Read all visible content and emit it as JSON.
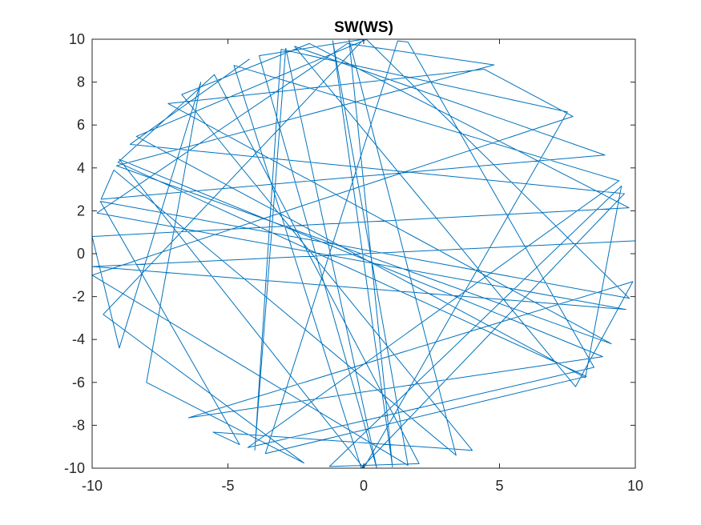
{
  "chart_data": {
    "type": "line",
    "title": "SW(WS)",
    "xlabel": "",
    "ylabel": "",
    "xlim": [
      -10,
      10
    ],
    "ylim": [
      -10,
      10
    ],
    "xticks": [
      -10,
      -5,
      0,
      5,
      10
    ],
    "yticks": [
      -10,
      -8,
      -6,
      -4,
      -2,
      0,
      2,
      4,
      6,
      8,
      10
    ],
    "grid": false,
    "legend": "none",
    "series_color": "#0072bd",
    "series": [
      {
        "x": [
          10.0,
          -9.99,
          9.66,
          -9.82,
          -0.6,
          4.8,
          -9.1,
          9.12,
          -7.2,
          4.44,
          7.7,
          -10.0,
          1.63,
          -1.14,
          1.06,
          -0.54,
          3.4,
          -9.2,
          -9.67,
          8.88,
          -2.55,
          7.8,
          9.91,
          -6.45,
          8.8,
          -9.0,
          0.0,
          7.5,
          -3.04,
          -4.01,
          -2.87,
          0.48,
          -3.85,
          0.0,
          -9.59,
          -2.2,
          -8.0,
          -6.0,
          -9.0,
          -10.0,
          9.77,
          -2.0,
          -6.7,
          4.0,
          -5.55,
          -4.57,
          -9.7,
          9.78,
          0.1,
          -8.37,
          8.16,
          9.49,
          -1.26,
          2.04,
          -5.5,
          -9.05,
          8.2,
          -3.62,
          1.25,
          1.63,
          8.48,
          -4.27,
          9.4,
          -4.78,
          -0.09,
          9.6,
          -8.6,
          -4.2
        ],
        "y": [
          0.6,
          -0.6,
          -2.6,
          1.9,
          9.8,
          8.8,
          4.1,
          -4.2,
          7.0,
          8.6,
          6.4,
          -1.0,
          -9.87,
          9.93,
          -9.94,
          9.98,
          -9.4,
          3.9,
          2.54,
          4.6,
          9.67,
          -6.2,
          -1.3,
          -7.65,
          -4.8,
          4.4,
          -10.0,
          6.61,
          9.53,
          -9.16,
          9.58,
          -9.99,
          9.23,
          10.0,
          -2.83,
          -9.76,
          -6.0,
          8.0,
          -4.4,
          0.8,
          2.14,
          9.8,
          7.42,
          -9.17,
          -8.32,
          -8.9,
          2.44,
          -2.08,
          9.99,
          5.47,
          -5.78,
          3.16,
          -9.92,
          -9.79,
          8.35,
          4.26,
          -5.72,
          -9.32,
          9.92,
          9.87,
          -5.3,
          -9.04,
          3.4,
          8.78,
          -10.0,
          2.8,
          5.1,
          9.08
        ]
      }
    ]
  }
}
